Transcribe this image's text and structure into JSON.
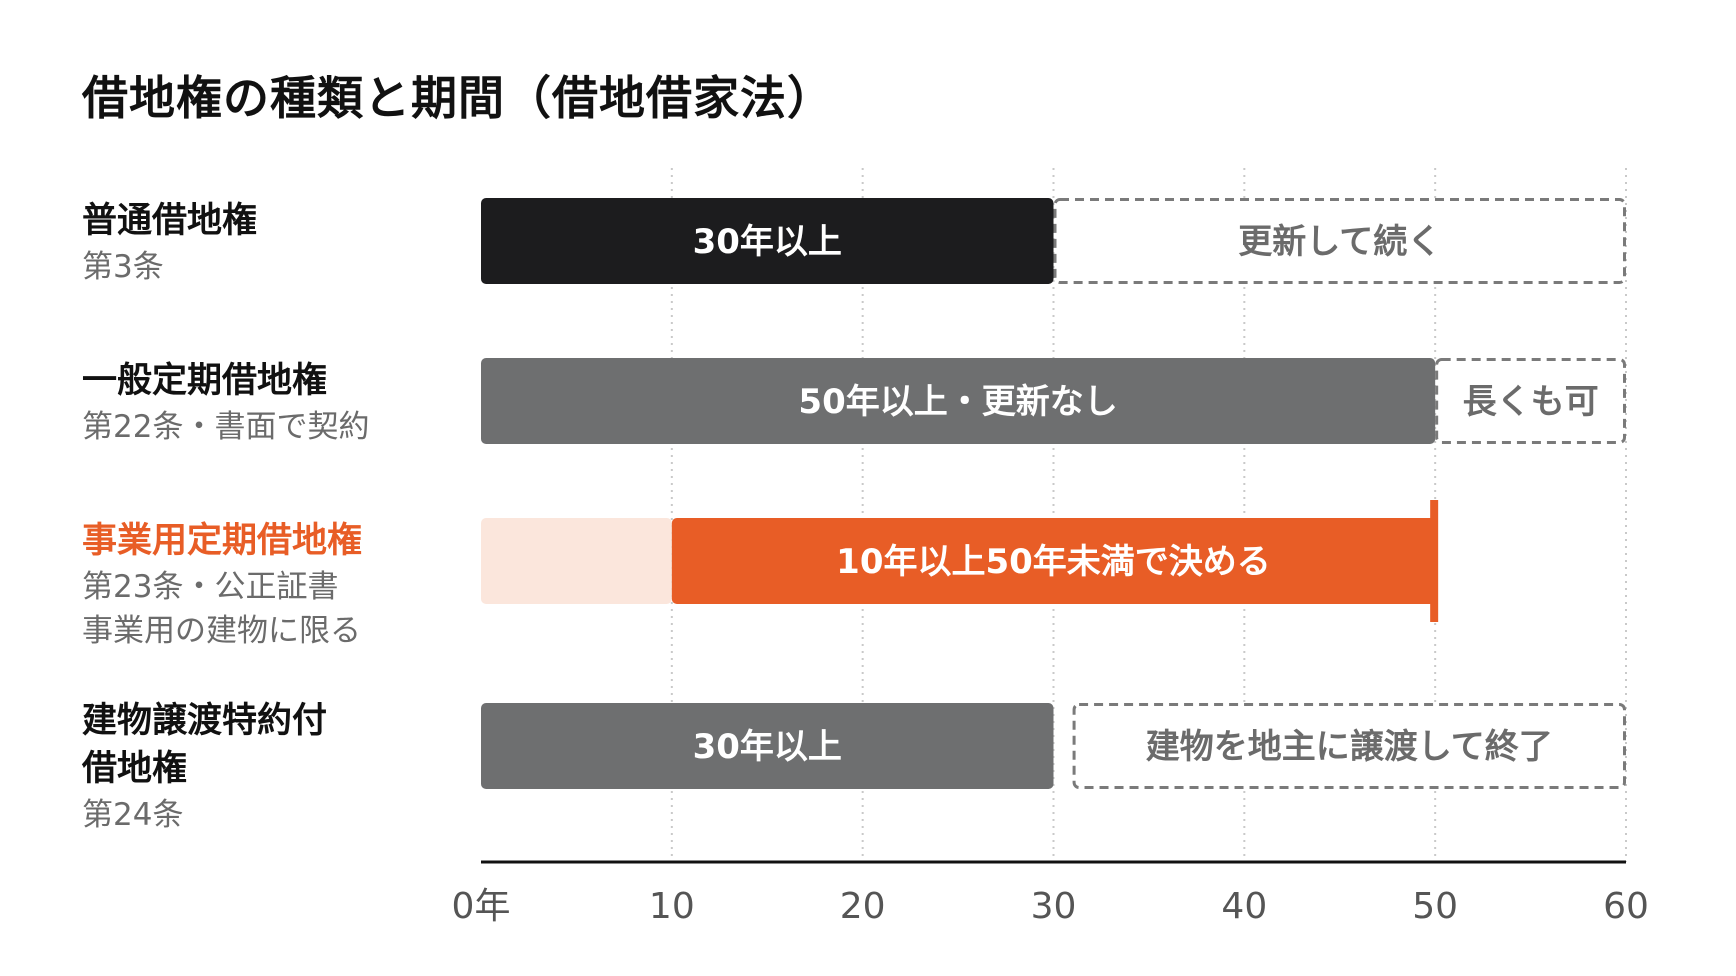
{
  "title": "借地権の種類と期間（借地借家法）",
  "colors": {
    "black_bar": "#1c1c1e",
    "gray_bar": "#6e6f70",
    "orange_bar": "#e85d26",
    "orange_light": "#fbe6dc",
    "dashed_border": "#7a7a7a",
    "dashed_text": "#6b6b6b",
    "axis": "#111111",
    "grid": "#c9c9c9"
  },
  "rows": [
    {
      "name": "普通借地権",
      "sub": [
        "第3条"
      ],
      "accent": false
    },
    {
      "name": "一般定期借地権",
      "sub": [
        "第22条・書面で契約"
      ],
      "accent": false
    },
    {
      "name": "事業用定期借地権",
      "sub": [
        "第23条・公正証書",
        "事業用の建物に限る"
      ],
      "accent": true
    },
    {
      "name": [
        "建物譲渡特約付",
        "借地権"
      ],
      "sub": [
        "第24条"
      ],
      "accent": false
    }
  ],
  "chart_data": {
    "type": "bar",
    "orientation": "horizontal",
    "x_unit": "年",
    "xlim": [
      0,
      60
    ],
    "x_ticks": [
      {
        "value": 0,
        "label": "0年"
      },
      {
        "value": 10,
        "label": "10"
      },
      {
        "value": 20,
        "label": "20"
      },
      {
        "value": 30,
        "label": "30"
      },
      {
        "value": 40,
        "label": "40"
      },
      {
        "value": 50,
        "label": "50"
      },
      {
        "value": 60,
        "label": "60"
      }
    ],
    "grid": "vertical dotted",
    "categories": [
      "普通借地権",
      "一般定期借地権",
      "事業用定期借地権",
      "建物譲渡特約付借地権"
    ],
    "bars": [
      {
        "category": "普通借地権",
        "segments": [
          {
            "start": 0,
            "end": 30,
            "label": "30年以上",
            "style": "black"
          },
          {
            "start": 30,
            "end": 60,
            "label": "更新して続く",
            "style": "dashed"
          }
        ]
      },
      {
        "category": "一般定期借地権",
        "segments": [
          {
            "start": 0,
            "end": 50,
            "label": "50年以上・更新なし",
            "style": "gray"
          },
          {
            "start": 50,
            "end": 60,
            "label": "長くも可",
            "style": "dashed"
          }
        ]
      },
      {
        "category": "事業用定期借地権",
        "segments": [
          {
            "start": 0,
            "end": 10,
            "label": "",
            "style": "orange_light"
          },
          {
            "start": 10,
            "end": 50,
            "label": "10年以上50年未満で決める",
            "style": "orange",
            "end_marker": true
          }
        ]
      },
      {
        "category": "建物譲渡特約付借地権",
        "segments": [
          {
            "start": 0,
            "end": 30,
            "label": "30年以上",
            "style": "gray"
          },
          {
            "start": 31,
            "end": 60,
            "label": "建物を地主に譲渡して終了",
            "style": "dashed"
          }
        ]
      }
    ]
  }
}
